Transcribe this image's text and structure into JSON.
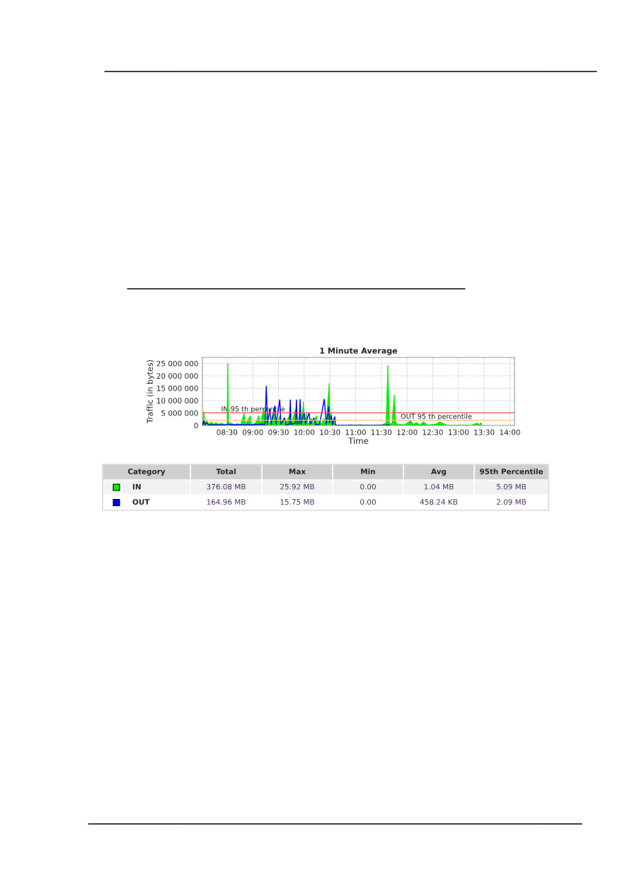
{
  "chart_data": {
    "type": "area",
    "title": "1 Minute Average",
    "xlabel": "Time",
    "ylabel": "Traffic (in bytes)",
    "xlim": [
      8.02,
      14.09
    ],
    "ylim": [
      0,
      27400000
    ],
    "xticks": [
      {
        "value": 8.5,
        "label": "08:30"
      },
      {
        "value": 9,
        "label": "09:00"
      },
      {
        "value": 9.5,
        "label": "09:30"
      },
      {
        "value": 10,
        "label": "10:00"
      },
      {
        "value": 10.5,
        "label": "10:30"
      },
      {
        "value": 11,
        "label": "11:00"
      },
      {
        "value": 11.5,
        "label": "11:30"
      },
      {
        "value": 12,
        "label": "12:00"
      },
      {
        "value": 12.5,
        "label": "12:30"
      },
      {
        "value": 13,
        "label": "13:00"
      },
      {
        "value": 13.5,
        "label": "13:30"
      },
      {
        "value": 14,
        "label": "14:00"
      }
    ],
    "yticks": [
      {
        "value": 0,
        "label": "0"
      },
      {
        "value": 5000000,
        "label": "5 000 000"
      },
      {
        "value": 10000000,
        "label": "10 000 000"
      },
      {
        "value": 15000000,
        "label": "15 000 000"
      },
      {
        "value": 20000000,
        "label": "20 000 000"
      },
      {
        "value": 25000000,
        "label": "25 000 000"
      }
    ],
    "grid": true,
    "legend": "bottom",
    "series": [
      {
        "name": "IN",
        "color": "#00ee00",
        "x": [
          8.02,
          8.048,
          8.071,
          8.105,
          8.15,
          8.19,
          8.24,
          8.286,
          8.33,
          8.381,
          8.476,
          8.5,
          8.514,
          8.533,
          8.571,
          8.65,
          8.7,
          8.762,
          8.833,
          8.857,
          8.952,
          8.976,
          9.05,
          9.119,
          9.143,
          9.214,
          9.238,
          9.286,
          9.31,
          9.357,
          9.429,
          9.452,
          9.524,
          9.548,
          9.595,
          9.619,
          9.714,
          9.743,
          9.81,
          9.833,
          9.867,
          9.905,
          9.938,
          9.986,
          10.0,
          10.048,
          10.07,
          10.143,
          10.17,
          10.238,
          10.26,
          10.286,
          10.333,
          10.381,
          10.429,
          10.452,
          10.486,
          10.505,
          10.524,
          10.55,
          10.571,
          10.595,
          10.61,
          10.8,
          10.909,
          11.0,
          11.09,
          11.2,
          11.5,
          11.59,
          11.627,
          11.659,
          11.705,
          11.75,
          11.782,
          11.818,
          11.95,
          12.068,
          12.12,
          12.182,
          12.25,
          12.318,
          12.4,
          12.55,
          12.636,
          12.682,
          12.773,
          12.9,
          13.1,
          13.25,
          13.364,
          13.4,
          13.432,
          13.455
        ],
        "values": [
          0,
          5500000.0,
          1000000.0,
          2000000.0,
          500000.0,
          1500000.0,
          500000.0,
          1200000.0,
          400000.0,
          1000000.0,
          300000.0,
          1000000.0,
          25000000.0,
          500000.0,
          1000000.0,
          300000.0,
          800000.0,
          300000.0,
          5000000.0,
          500000.0,
          4000000.0,
          300000.0,
          1000000.0,
          4000000.0,
          500000.0,
          7000000.0,
          1000000.0,
          5000000.0,
          500000.0,
          2000000.0,
          6000000.0,
          500000.0,
          4000000.0,
          500000.0,
          3000000.0,
          500000.0,
          4000000.0,
          500000.0,
          5000000.0,
          6500000.0,
          1000000.0,
          4000000.0,
          1000000.0,
          9500000.0,
          1000000.0,
          5000000.0,
          500000.0,
          3000000.0,
          500000.0,
          4000000.0,
          500000.0,
          2000000.0,
          500000.0,
          3000000.0,
          500000.0,
          8000000.0,
          17000000.0,
          3000000.0,
          5000000.0,
          1000000.0,
          3000000.0,
          500000.0,
          0,
          100000.0,
          300000.0,
          0,
          300000.0,
          0,
          200000.0,
          1000000.0,
          24300000.0,
          1000000.0,
          500000.0,
          12300000.0,
          1000000.0,
          500000.0,
          300000.0,
          2000000.0,
          500000.0,
          1200000.0,
          300000.0,
          1500000.0,
          200000.0,
          500000.0,
          1500000.0,
          1000000.0,
          200000.0,
          100000.0,
          200000.0,
          100000.0,
          1000000.0,
          300000.0,
          1200000.0,
          0
        ]
      },
      {
        "name": "OUT",
        "color": "#0000ee",
        "type": "line",
        "x": [
          8.02,
          8.048,
          8.071,
          8.105,
          8.15,
          8.3,
          8.5,
          8.52,
          8.6,
          8.8,
          9.0,
          9.2,
          9.238,
          9.262,
          9.286,
          9.333,
          9.357,
          9.429,
          9.452,
          9.524,
          9.548,
          9.619,
          9.643,
          9.714,
          9.729,
          9.743,
          9.833,
          9.848,
          9.867,
          9.905,
          9.919,
          9.938,
          10.0,
          10.024,
          10.095,
          10.12,
          10.19,
          10.22,
          10.3,
          10.39,
          10.429,
          10.476,
          10.49,
          10.524,
          10.55,
          10.595,
          10.61,
          11.6,
          11.627,
          11.66
        ],
        "values": [
          0,
          2000000.0,
          300000.0,
          1000000.0,
          200000.0,
          200000.0,
          300000.0,
          500000.0,
          200000.0,
          300000.0,
          300000.0,
          500000.0,
          300000.0,
          15800000.0,
          500000.0,
          6500000.0,
          500000.0,
          7800000.0,
          500000.0,
          10300000.0,
          500000.0,
          3000000.0,
          300000.0,
          500000.0,
          10300000.0,
          500000.0,
          1000000.0,
          10300000.0,
          500000.0,
          1000000.0,
          10400000.0,
          500000.0,
          5000000.0,
          500000.0,
          5000000.0,
          500000.0,
          3000000.0,
          300000.0,
          500000.0,
          10600000.0,
          500000.0,
          7500000.0,
          1000000.0,
          4000000.0,
          300000.0,
          3500000.0,
          0,
          0,
          400000.0,
          0
        ]
      }
    ],
    "ref_lines": [
      {
        "axis": "y",
        "value": 5090000,
        "label": "IN 95 th percentile",
        "color": "#ff5050"
      },
      {
        "axis": "y",
        "value": 2090000,
        "label": "OUT 95 th percentile",
        "color": "#ffc080"
      }
    ],
    "annotations": [
      "Category",
      "Total",
      "Max",
      "Min",
      "Avg",
      "95th Percentile",
      "376.08 MB",
      "25.92 MB",
      "0.00",
      "1.04 MB",
      "5.09 MB",
      "164.96 MB",
      "15.75 MB",
      "0.00",
      "458.24 KB",
      "2.09 MB"
    ]
  }
}
